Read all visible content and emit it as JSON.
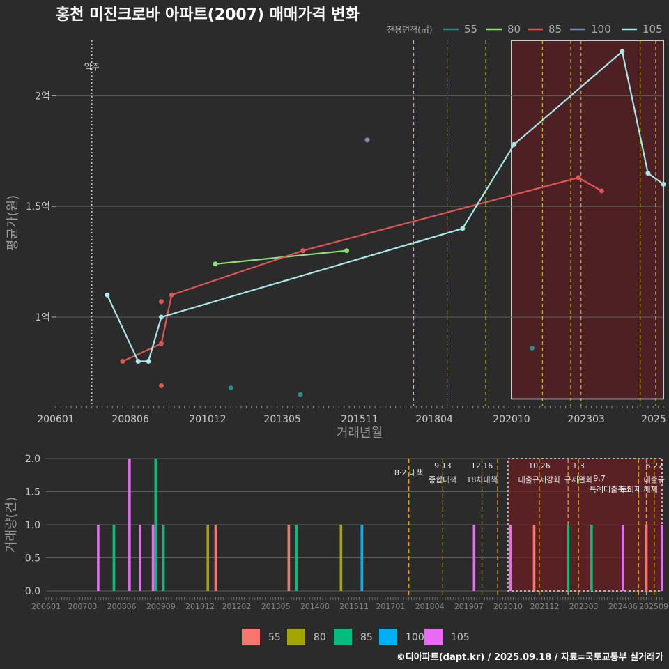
{
  "chart_data": [
    {
      "type": "line",
      "title": "홍천 미진크로바 아파트(2007) 매매가격 변화",
      "xlabel": "거래년월",
      "ylabel": "평균가(원)",
      "x_range": [
        "2006-01",
        "2025-09"
      ],
      "ylim": [
        0.6,
        2.25
      ],
      "x_ticks": [
        "200601",
        "200806",
        "201012",
        "201305",
        "201511",
        "201804",
        "202010",
        "202303",
        "2025"
      ],
      "y_ticks": [
        {
          "v": 1.0,
          "label": "1억"
        },
        {
          "v": 1.5,
          "label": "1.5억"
        },
        {
          "v": 2.0,
          "label": "2억"
        }
      ],
      "legend_title": "전용면적(㎡)",
      "move_in": {
        "date": "2007-03",
        "label": "입주"
      },
      "highlight_box": {
        "from": "2020-10",
        "to": "2025-09",
        "ymin": 0.63,
        "ymax": 2.25
      },
      "policy_lines": [
        "2017-08",
        "2018-09",
        "2019-12",
        "2021-10",
        "2022-09",
        "2023-01",
        "2024-12",
        "2025-06"
      ],
      "series": [
        {
          "name": "55",
          "color": "#2a8a8a",
          "points": [],
          "isolated": [
            [
              "2011-09",
              0.68
            ],
            [
              "2013-12",
              0.65
            ],
            [
              "2021-06",
              0.86
            ]
          ]
        },
        {
          "name": "80",
          "color": "#8ee07a",
          "points": [
            [
              "2011-03",
              1.24
            ],
            [
              "2015-06",
              1.3
            ]
          ],
          "isolated": []
        },
        {
          "name": "85",
          "color": "#e05555",
          "points": [
            [
              "2008-03",
              0.8
            ],
            [
              "2009-06",
              0.88
            ],
            [
              "2009-10",
              1.1
            ],
            [
              "2014-01",
              1.3
            ],
            [
              "2022-12",
              1.63
            ],
            [
              "2023-09",
              1.57
            ]
          ],
          "isolated": [
            [
              "2009-06",
              1.07
            ],
            [
              "2009-06",
              0.69
            ]
          ]
        },
        {
          "name": "100",
          "color": "#7f8fb0",
          "points": [],
          "isolated": [
            [
              "2016-02",
              1.8
            ]
          ]
        },
        {
          "name": "105",
          "color": "#a8e8e8",
          "points": [
            [
              "2007-09",
              1.1
            ],
            [
              "2008-09",
              0.8
            ],
            [
              "2009-01",
              0.8
            ],
            [
              "2009-06",
              1.0
            ],
            [
              "2019-03",
              1.4
            ],
            [
              "2020-11",
              1.78
            ],
            [
              "2024-05",
              2.2
            ],
            [
              "2025-03",
              1.65
            ],
            [
              "2025-09",
              1.6
            ]
          ],
          "isolated": []
        }
      ]
    },
    {
      "type": "bar",
      "ylabel": "거래량(건)",
      "ylim": [
        0,
        2.0
      ],
      "y_ticks": [
        "0.0",
        "0.5",
        "1.0",
        "1.5",
        "2.0"
      ],
      "x_ticks": [
        "200601",
        "200703",
        "200806",
        "200909",
        "201012",
        "201202",
        "201305",
        "201408",
        "201511",
        "201701",
        "201804",
        "201907",
        "202010",
        "202112",
        "202303",
        "202406",
        "202509"
      ],
      "highlight_box": {
        "from": "2020-10",
        "to": "2025-09"
      },
      "policy_lines": [
        "2017-08",
        "2018-09",
        "2019-12",
        "2020-06",
        "2021-10",
        "2022-09",
        "2023-01",
        "2024-12",
        "2025-03",
        "2025-06"
      ],
      "annotations": [
        {
          "date": "2017-08",
          "line1": "8·2 대책",
          "line2": ""
        },
        {
          "date": "2018-09",
          "line1": "9·13",
          "line2": "종합대책"
        },
        {
          "date": "2019-12",
          "line1": "12·16",
          "line2": "18차대책"
        },
        {
          "date": "2021-10",
          "line1": "10.26",
          "line2": "대출규제강화"
        },
        {
          "date": "2023-01",
          "line1": "1.3",
          "line2": "규제완화"
        },
        {
          "date": "2023-09",
          "line1": "",
          "line2": "9.7"
        },
        {
          "date": "2024-12",
          "line1": "",
          "line2": "특례대출축소"
        },
        {
          "date": "2025-06",
          "line1": "6.27",
          "line2": "대출규"
        },
        {
          "date": "2025-06",
          "line1": "",
          "line2": "토허제 해제"
        }
      ],
      "series_colors": {
        "55": "#f8766d",
        "80": "#a3a500",
        "85": "#00bf7d",
        "100": "#00b0f6",
        "105": "#e76bf3"
      },
      "bars": [
        {
          "date": "2007-09",
          "series": "105",
          "value": 1
        },
        {
          "date": "2008-03",
          "series": "85",
          "value": 1
        },
        {
          "date": "2008-09",
          "series": "105",
          "value": 2
        },
        {
          "date": "2009-01",
          "series": "105",
          "value": 1
        },
        {
          "date": "2009-06",
          "series": "105",
          "value": 1
        },
        {
          "date": "2009-07",
          "series": "85",
          "value": 2
        },
        {
          "date": "2009-10",
          "series": "85",
          "value": 1
        },
        {
          "date": "2011-03",
          "series": "80",
          "value": 1
        },
        {
          "date": "2011-06",
          "series": "55",
          "value": 1
        },
        {
          "date": "2013-10",
          "series": "55",
          "value": 1
        },
        {
          "date": "2014-01",
          "series": "85",
          "value": 1
        },
        {
          "date": "2015-06",
          "series": "80",
          "value": 1
        },
        {
          "date": "2016-02",
          "series": "100",
          "value": 1
        },
        {
          "date": "2019-09",
          "series": "105",
          "value": 1
        },
        {
          "date": "2020-11",
          "series": "105",
          "value": 1
        },
        {
          "date": "2021-08",
          "series": "55",
          "value": 1
        },
        {
          "date": "2022-09",
          "series": "85",
          "value": 1
        },
        {
          "date": "2023-06",
          "series": "85",
          "value": 1
        },
        {
          "date": "2024-06",
          "series": "105",
          "value": 1
        },
        {
          "date": "2025-03",
          "series": "55",
          "value": 1
        },
        {
          "date": "2025-09",
          "series": "105",
          "value": 1
        }
      ],
      "legend": [
        "55",
        "80",
        "85",
        "100",
        "105"
      ]
    }
  ],
  "caption": "©디아파트(dapt.kr) / 2025.09.18 / 자료=국토교통부 실거래가"
}
